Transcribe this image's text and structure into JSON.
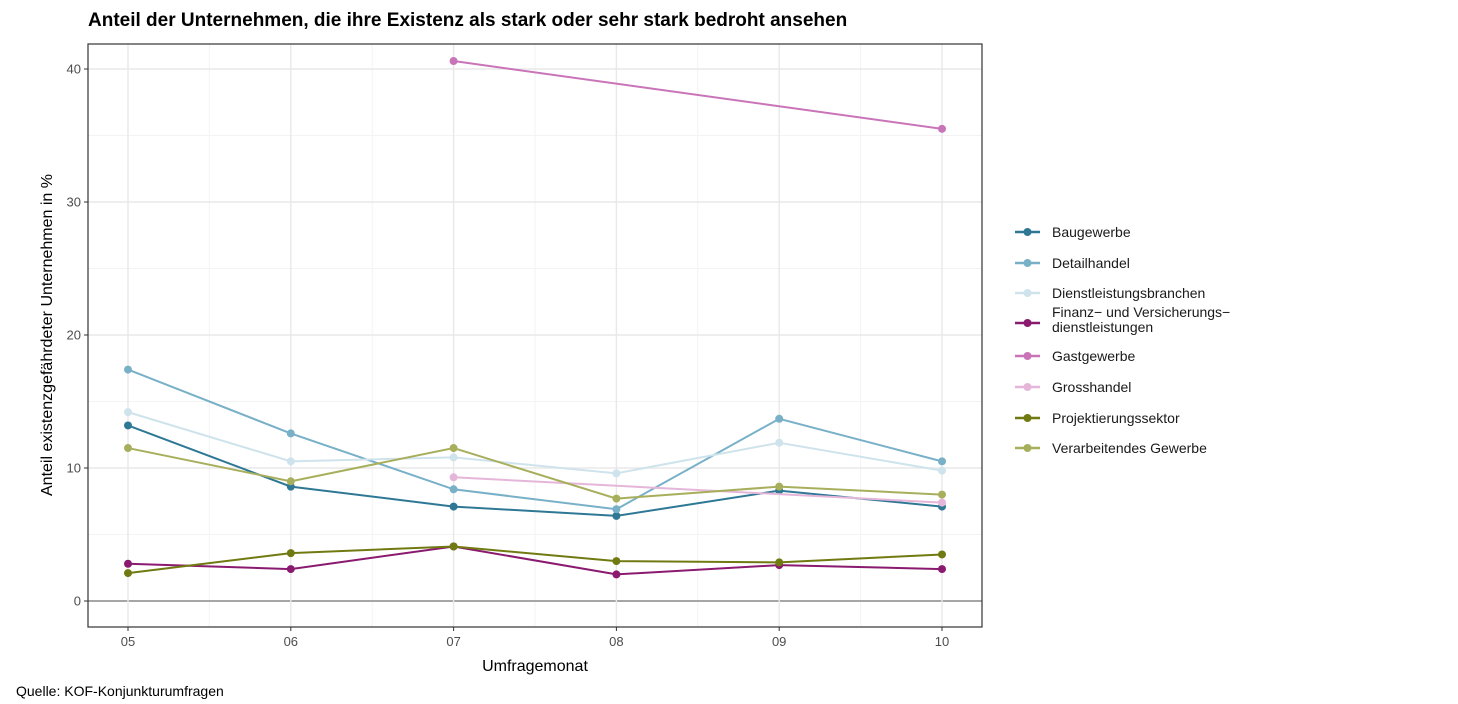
{
  "chart_data": {
    "type": "line",
    "title": "Anteil der Unternehmen, die ihre Existenz als stark oder sehr stark bedroht ansehen",
    "xlabel": "Umfragemonat",
    "ylabel": "Anteil existenzgefährdeter Unternehmen in %",
    "categories": [
      "05",
      "06",
      "07",
      "08",
      "09",
      "10"
    ],
    "yticks": [
      "0",
      "10",
      "20",
      "30",
      "40"
    ],
    "ylim": [
      -2,
      42
    ],
    "grid": true,
    "legend_position": "right",
    "source": "Quelle: KOF-Konjunkturumfragen",
    "series": [
      {
        "name": "Baugewerbe",
        "color": "#2e7895",
        "values": [
          13.2,
          8.6,
          7.1,
          6.4,
          8.3,
          7.1
        ]
      },
      {
        "name": "Detailhandel",
        "color": "#78b0c8",
        "values": [
          17.4,
          12.6,
          8.4,
          6.9,
          13.7,
          10.5
        ]
      },
      {
        "name": "Dienstleistungsbranchen",
        "color": "#cfe3ec",
        "values": [
          14.2,
          10.5,
          10.8,
          9.6,
          11.9,
          9.8
        ]
      },
      {
        "name": "Finanz− und Versicherungs−\ndienstleistungen",
        "color": "#8a1a6f",
        "values": [
          2.8,
          2.4,
          4.1,
          2.0,
          2.7,
          2.4
        ]
      },
      {
        "name": "Gastgewerbe",
        "color": "#c974b8",
        "values": [
          null,
          null,
          40.6,
          null,
          null,
          35.5
        ]
      },
      {
        "name": "Grosshandel",
        "color": "#e5b6da",
        "values": [
          null,
          null,
          9.3,
          null,
          null,
          7.4
        ]
      },
      {
        "name": "Projektierungssektor",
        "color": "#707a10",
        "values": [
          2.1,
          3.6,
          4.1,
          3.0,
          2.9,
          3.5
        ]
      },
      {
        "name": "Verarbeitendes Gewerbe",
        "color": "#a8af5c",
        "values": [
          11.5,
          9.0,
          11.5,
          7.7,
          8.6,
          8.0
        ]
      }
    ]
  }
}
